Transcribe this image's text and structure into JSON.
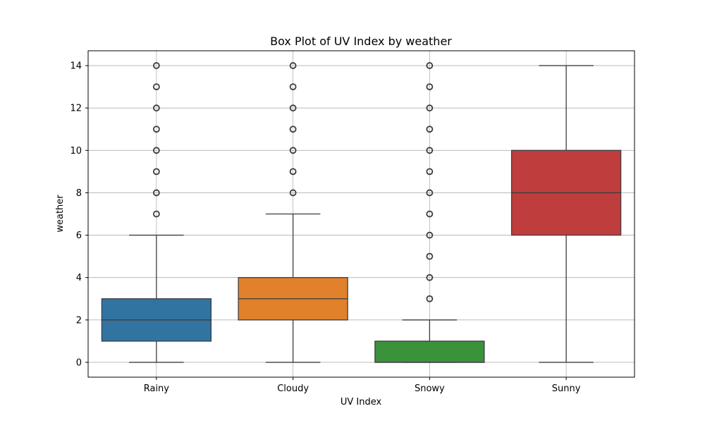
{
  "chart_data": {
    "type": "box",
    "title": "Box Plot of UV Index by weather",
    "xlabel": "UV Index",
    "ylabel": "weather",
    "categories": [
      "Rainy",
      "Cloudy",
      "Snowy",
      "Sunny"
    ],
    "ylim": [
      -0.7,
      14.7
    ],
    "yticks": [
      0,
      2,
      4,
      6,
      8,
      10,
      12,
      14
    ],
    "grid": true,
    "boxes": [
      {
        "category": "Rainy",
        "color": "#3274a1",
        "whisker_low": 0,
        "q1": 1,
        "median": 2,
        "q3": 3,
        "whisker_high": 6,
        "outliers": [
          7,
          8,
          9,
          10,
          11,
          12,
          13,
          14
        ]
      },
      {
        "category": "Cloudy",
        "color": "#e1812c",
        "whisker_low": 0,
        "q1": 2,
        "median": 3,
        "q3": 4,
        "whisker_high": 7,
        "outliers": [
          8,
          9,
          10,
          11,
          12,
          13,
          14
        ]
      },
      {
        "category": "Snowy",
        "color": "#3a923a",
        "whisker_low": 0,
        "q1": 0,
        "median": 0,
        "q3": 1,
        "whisker_high": 2,
        "outliers": [
          3,
          4,
          5,
          6,
          7,
          8,
          9,
          10,
          11,
          12,
          13,
          14
        ]
      },
      {
        "category": "Sunny",
        "color": "#c03d3e",
        "whisker_low": 0,
        "q1": 6,
        "median": 8,
        "q3": 10,
        "whisker_high": 14,
        "outliers": []
      }
    ]
  }
}
